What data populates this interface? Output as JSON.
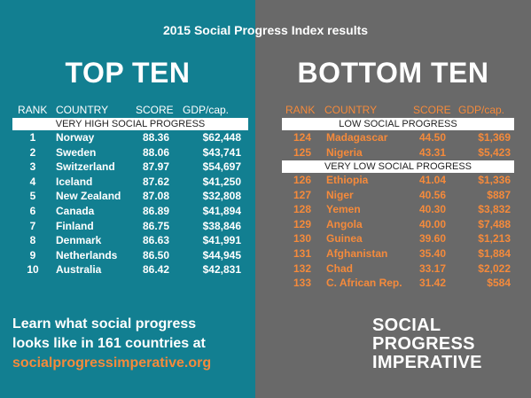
{
  "title": "2015 Social Progress Index results",
  "top": {
    "heading": "TOP TEN",
    "headers": {
      "rank": "RANK",
      "country": "COUNTRY",
      "score": "SCORE",
      "gdp": "GDP/cap."
    },
    "band": "VERY HIGH SOCIAL PROGRESS",
    "rows": [
      {
        "rank": "1",
        "country": "Norway",
        "score": "88.36",
        "gdp": "$62,448"
      },
      {
        "rank": "2",
        "country": "Sweden",
        "score": "88.06",
        "gdp": "$43,741"
      },
      {
        "rank": "3",
        "country": "Switzerland",
        "score": "87.97",
        "gdp": "$54,697"
      },
      {
        "rank": "4",
        "country": "Iceland",
        "score": "87.62",
        "gdp": "$41,250"
      },
      {
        "rank": "5",
        "country": "New Zealand",
        "score": "87.08",
        "gdp": "$32,808"
      },
      {
        "rank": "6",
        "country": "Canada",
        "score": "86.89",
        "gdp": "$41,894"
      },
      {
        "rank": "7",
        "country": "Finland",
        "score": "86.75",
        "gdp": "$38,846"
      },
      {
        "rank": "8",
        "country": "Denmark",
        "score": "86.63",
        "gdp": "$41,991"
      },
      {
        "rank": "9",
        "country": "Netherlands",
        "score": "86.50",
        "gdp": "$44,945"
      },
      {
        "rank": "10",
        "country": "Australia",
        "score": "86.42",
        "gdp": "$42,831"
      }
    ]
  },
  "bottom": {
    "heading": "BOTTOM TEN",
    "headers": {
      "rank": "RANK",
      "country": "COUNTRY",
      "score": "SCORE",
      "gdp": "GDP/cap."
    },
    "band_low": "LOW SOCIAL PROGRESS",
    "band_very_low": "VERY LOW SOCIAL PROGRESS",
    "rows_low": [
      {
        "rank": "124",
        "country": "Madagascar",
        "score": "44.50",
        "gdp": "$1,369"
      },
      {
        "rank": "125",
        "country": "Nigeria",
        "score": "43.31",
        "gdp": "$5,423"
      }
    ],
    "rows_very_low": [
      {
        "rank": "126",
        "country": "Ethiopia",
        "score": "41.04",
        "gdp": "$1,336"
      },
      {
        "rank": "127",
        "country": "Niger",
        "score": "40.56",
        "gdp": "$887"
      },
      {
        "rank": "128",
        "country": "Yemen",
        "score": "40.30",
        "gdp": "$3,832"
      },
      {
        "rank": "129",
        "country": "Angola",
        "score": "40.00",
        "gdp": "$7,488"
      },
      {
        "rank": "130",
        "country": "Guinea",
        "score": "39.60",
        "gdp": "$1,213"
      },
      {
        "rank": "131",
        "country": "Afghanistan",
        "score": "35.40",
        "gdp": "$1,884"
      },
      {
        "rank": "132",
        "country": "Chad",
        "score": "33.17",
        "gdp": "$2,022"
      },
      {
        "rank": "133",
        "country": "C. African Rep.",
        "score": "31.42",
        "gdp": "$584"
      }
    ]
  },
  "footer": {
    "line1": "Learn what social progress",
    "line2": "looks like in 161 countries at",
    "line3": "socialprogressimperative.org"
  },
  "logo": {
    "line1": "SOCIAL",
    "line2": "PROGRESS",
    "line3": "IMPERATIVE"
  },
  "colors": {
    "teal": "#127f91",
    "gray": "#696969",
    "orange": "#f58a3b",
    "white": "#ffffff"
  }
}
